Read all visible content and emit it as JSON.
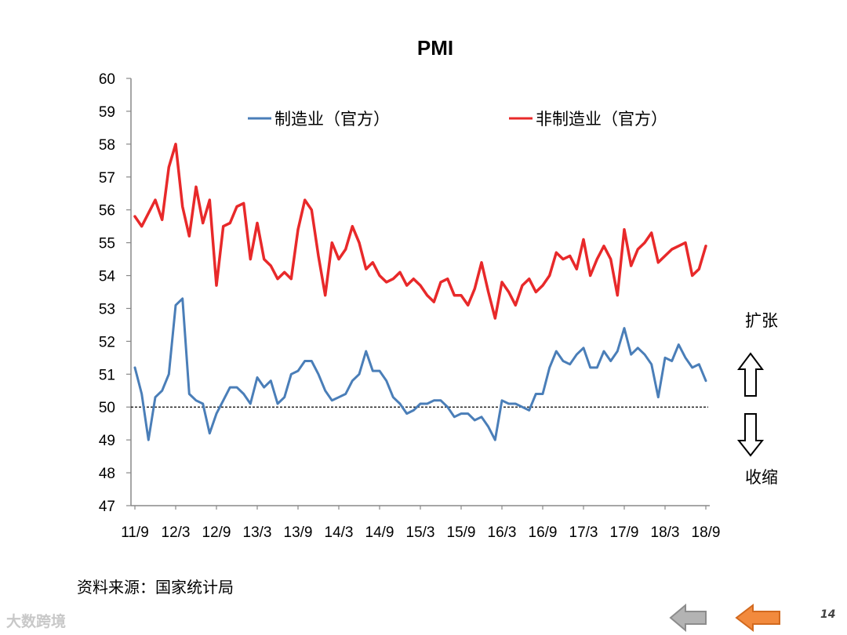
{
  "chart_data": {
    "type": "line",
    "title": "PMI",
    "xlabel": "",
    "ylabel": "",
    "ylim": [
      47,
      60
    ],
    "yticks": [
      47,
      48,
      49,
      50,
      51,
      52,
      53,
      54,
      55,
      56,
      57,
      58,
      59,
      60
    ],
    "x_tick_labels": [
      "11/9",
      "12/3",
      "12/9",
      "13/3",
      "13/9",
      "14/3",
      "14/9",
      "15/3",
      "15/9",
      "16/3",
      "16/9",
      "17/3",
      "17/9",
      "18/3",
      "18/9"
    ],
    "x_start": "2011-09",
    "x_end": "2018-09",
    "legend_position": "top",
    "reference_line": {
      "value": 50,
      "style": "dashed",
      "color": "#000000"
    },
    "annotations": {
      "expand": "扩张",
      "contract": "收缩"
    },
    "series": [
      {
        "name": "制造业（官方）",
        "color": "#4a7eb8",
        "values": [
          51.2,
          50.4,
          49.0,
          50.3,
          50.5,
          51.0,
          53.1,
          53.3,
          50.4,
          50.2,
          50.1,
          49.2,
          49.8,
          50.2,
          50.6,
          50.6,
          50.4,
          50.1,
          50.9,
          50.6,
          50.8,
          50.1,
          50.3,
          51.0,
          51.1,
          51.4,
          51.4,
          51.0,
          50.5,
          50.2,
          50.3,
          50.4,
          50.8,
          51.0,
          51.7,
          51.1,
          51.1,
          50.8,
          50.3,
          50.1,
          49.8,
          49.9,
          50.1,
          50.1,
          50.2,
          50.2,
          50.0,
          49.7,
          49.8,
          49.8,
          49.6,
          49.7,
          49.4,
          49.0,
          50.2,
          50.1,
          50.1,
          50.0,
          49.9,
          50.4,
          50.4,
          51.2,
          51.7,
          51.4,
          51.3,
          51.6,
          51.8,
          51.2,
          51.2,
          51.7,
          51.4,
          51.7,
          52.4,
          51.6,
          51.8,
          51.6,
          51.3,
          50.3,
          51.5,
          51.4,
          51.9,
          51.5,
          51.2,
          51.3,
          50.8
        ]
      },
      {
        "name": "非制造业（官方）",
        "color": "#e8292a",
        "values": [
          55.8,
          55.5,
          55.9,
          56.3,
          55.7,
          57.3,
          58.0,
          56.1,
          55.2,
          56.7,
          55.6,
          56.3,
          53.7,
          55.5,
          55.6,
          56.1,
          56.2,
          54.5,
          55.6,
          54.5,
          54.3,
          53.9,
          54.1,
          53.9,
          55.4,
          56.3,
          56.0,
          54.6,
          53.4,
          55.0,
          54.5,
          54.8,
          55.5,
          55.0,
          54.2,
          54.4,
          54.0,
          53.8,
          53.9,
          54.1,
          53.7,
          53.9,
          53.7,
          53.4,
          53.2,
          53.8,
          53.9,
          53.4,
          53.4,
          53.1,
          53.6,
          54.4,
          53.5,
          52.7,
          53.8,
          53.5,
          53.1,
          53.7,
          53.9,
          53.5,
          53.7,
          54.0,
          54.7,
          54.5,
          54.6,
          54.2,
          55.1,
          54.0,
          54.5,
          54.9,
          54.5,
          53.4,
          55.4,
          54.3,
          54.8,
          55.0,
          55.3,
          54.4,
          54.6,
          54.8,
          54.9,
          55.0,
          54.0,
          54.2,
          54.9
        ]
      }
    ]
  },
  "footer": {
    "source": "资料来源：国家统计局",
    "watermark": "大数跨境",
    "page_number": "14"
  }
}
